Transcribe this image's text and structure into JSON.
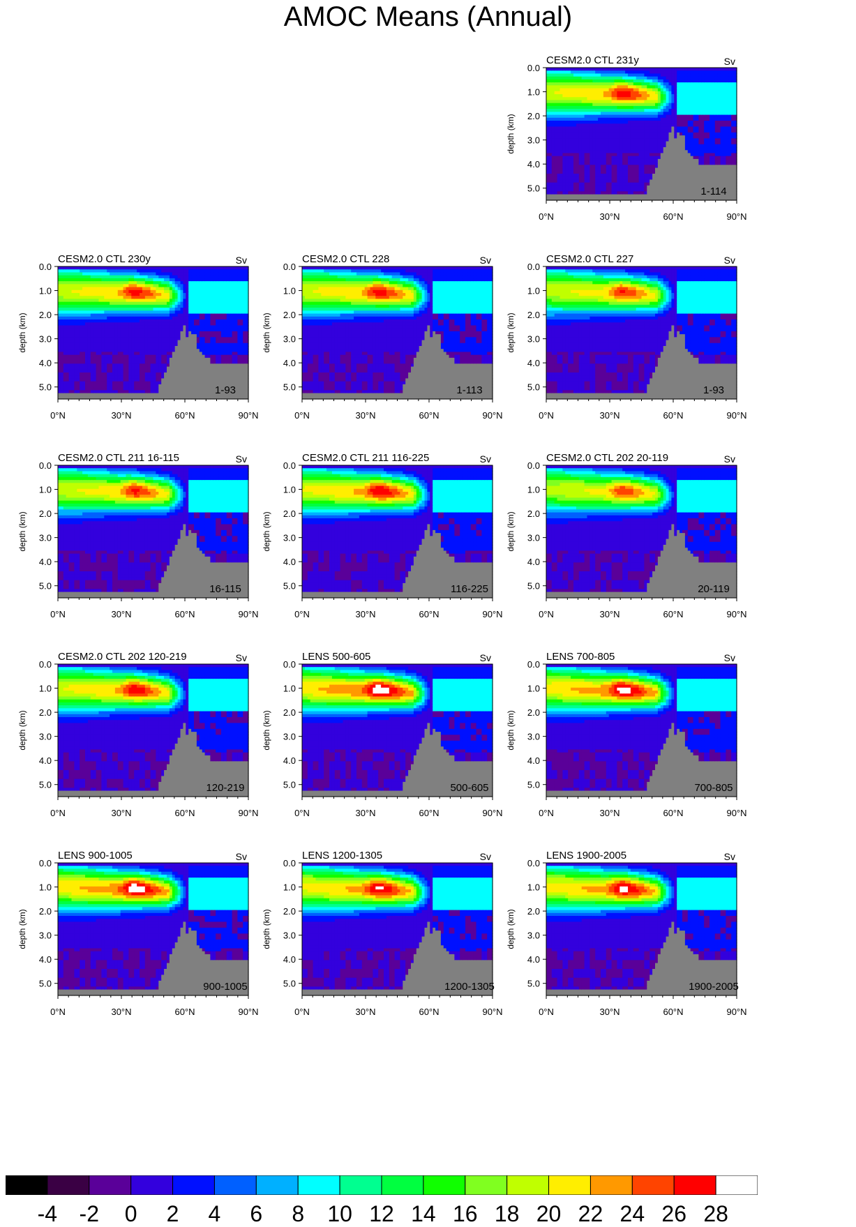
{
  "title": "AMOC Means (Annual)",
  "units_label": "Sv",
  "chart_data": {
    "type": "heatmap",
    "title": "AMOC Means (Annual)",
    "units": "Sv",
    "ylabel": "depth (km)",
    "xlim": [
      0,
      90
    ],
    "ylim": [
      5.5,
      0
    ],
    "x_ticks": [
      "0°N",
      "30°N",
      "60°N",
      "90°N"
    ],
    "y_ticks": [
      "0.0",
      "1.0",
      "2.0",
      "3.0",
      "4.0",
      "5.0"
    ],
    "colorbar": {
      "levels": [
        -4,
        -2,
        0,
        2,
        4,
        6,
        8,
        10,
        12,
        14,
        16,
        18,
        20,
        22,
        24,
        26,
        28
      ],
      "labels": [
        "-4",
        "-2",
        "0",
        "2",
        "4",
        "6",
        "8",
        "10",
        "12",
        "14",
        "16",
        "18",
        "20",
        "22",
        "24",
        "26",
        "28"
      ],
      "colors": [
        "#000000",
        "#3a0044",
        "#5a0099",
        "#3300dd",
        "#0010ff",
        "#0060ff",
        "#00b0ff",
        "#00ffff",
        "#00ff90",
        "#00ff40",
        "#10ff00",
        "#80ff20",
        "#c0ff00",
        "#ffee00",
        "#ff9900",
        "#ff4400",
        "#ff0000",
        "#ffffff"
      ]
    },
    "panels": [
      {
        "title": "CESM2.0 CTL 231y",
        "years": "1-114",
        "peak": 24.5
      },
      {
        "title": "CESM2.0 CTL 230y",
        "years": "1-93",
        "peak": 24.2
      },
      {
        "title": "CESM2.0 CTL 228",
        "years": "1-113",
        "peak": 24.4
      },
      {
        "title": "CESM2.0 CTL 227",
        "years": "1-93",
        "peak": 23.6
      },
      {
        "title": "CESM2.0 CTL 211 16-115",
        "years": "16-115",
        "peak": 23.9
      },
      {
        "title": "CESM2.0 CTL 211 116-225",
        "years": "116-225",
        "peak": 25.0
      },
      {
        "title": "CESM2.0 CTL 202 20-119",
        "years": "20-119",
        "peak": 23.2
      },
      {
        "title": "CESM2.0 CTL 202 120-219",
        "years": "120-219",
        "peak": 24.6
      },
      {
        "title": "LENS 500-605",
        "years": "500-605",
        "peak": 26.5
      },
      {
        "title": "LENS 700-805",
        "years": "700-805",
        "peak": 26.0
      },
      {
        "title": "LENS 900-1005",
        "years": "900-1005",
        "peak": 26.2
      },
      {
        "title": "LENS 1200-1305",
        "years": "1200-1305",
        "peak": 25.3
      },
      {
        "title": "LENS 1900-2005",
        "years": "1900-2005",
        "peak": 25.6
      }
    ]
  }
}
